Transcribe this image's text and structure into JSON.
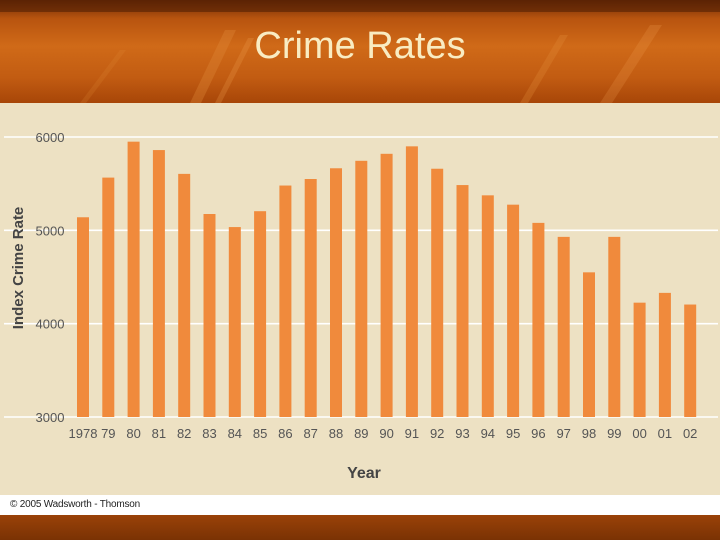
{
  "slide": {
    "title": "Crime Rates",
    "copyright": "© 2005 Wadsworth - Thomson"
  },
  "colors": {
    "bar": "#f08a3c",
    "panel": "#ede1c3",
    "gridline": "#ffffff",
    "title_text": "#f9ecc2"
  },
  "chart_data": {
    "type": "bar",
    "title": "",
    "xlabel": "Year",
    "ylabel": "Index Crime Rate",
    "ylim": [
      3000,
      6000
    ],
    "yticks": [
      3000,
      4000,
      5000,
      6000
    ],
    "grid": true,
    "categories": [
      "1978",
      "79",
      "80",
      "81",
      "82",
      "83",
      "84",
      "85",
      "86",
      "87",
      "88",
      "89",
      "90",
      "91",
      "92",
      "93",
      "94",
      "95",
      "96",
      "97",
      "98",
      "99",
      "00",
      "01",
      "02"
    ],
    "values": [
      5140,
      5565,
      5950,
      5860,
      5605,
      5175,
      5035,
      5205,
      5480,
      5550,
      5665,
      5745,
      5820,
      5900,
      5660,
      5485,
      5375,
      5275,
      5080,
      4930,
      4550,
      4930,
      4225,
      4330,
      4205
    ]
  }
}
